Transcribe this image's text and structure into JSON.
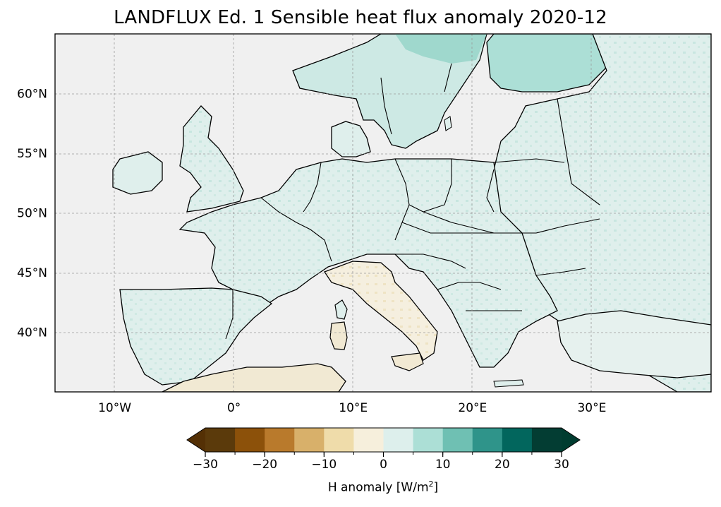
{
  "title": "LANDFLUX Ed. 1 Sensible heat flux anomaly 2020-12",
  "map": {
    "lon_range": [
      -15,
      40
    ],
    "lat_range": [
      35,
      65
    ],
    "lon_ticks": [
      {
        "value": -10,
        "label": "10°W"
      },
      {
        "value": 0,
        "label": "0°"
      },
      {
        "value": 10,
        "label": "10°E"
      },
      {
        "value": 20,
        "label": "20°E"
      },
      {
        "value": 30,
        "label": "30°E"
      }
    ],
    "lat_ticks": [
      {
        "value": 60,
        "label": "60°N"
      },
      {
        "value": 55,
        "label": "55°N"
      },
      {
        "value": 50,
        "label": "50°N"
      },
      {
        "value": 45,
        "label": "45°N"
      },
      {
        "value": 40,
        "label": "40°N"
      }
    ],
    "ocean_color": "#f0f0f0",
    "gridlines": true
  },
  "colorbar": {
    "label_text": "H anomaly [W/m",
    "label_sup": "2",
    "label_end": "]",
    "extend": "both",
    "bounds": [
      -30,
      -25,
      -20,
      -15,
      -10,
      -5,
      0,
      5,
      10,
      15,
      20,
      25,
      30
    ],
    "colors": [
      "#5b3a0b",
      "#8c510a",
      "#b97a2c",
      "#d8b06a",
      "#efdcaa",
      "#f6efdc",
      "#ddefec",
      "#acdfd6",
      "#6fc0b3",
      "#2f948a",
      "#02665d",
      "#033d33"
    ],
    "under_color": "#543005",
    "over_color": "#003c30",
    "tick_labels": [
      "−30",
      "−20",
      "−10",
      "0",
      "10",
      "20",
      "30"
    ]
  }
}
